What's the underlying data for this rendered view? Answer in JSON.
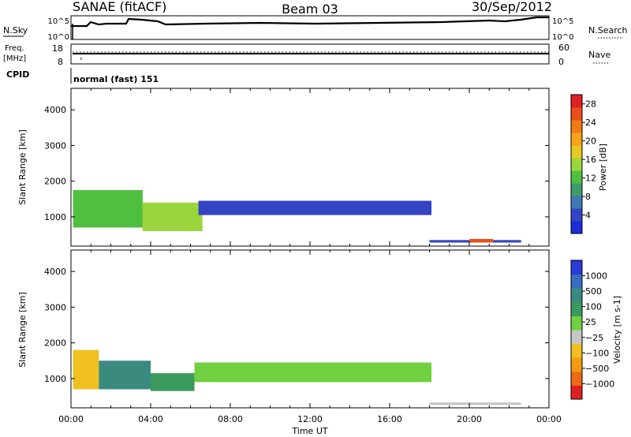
{
  "header": {
    "title": "SANAE (fitACF)",
    "beam": "Beam 03",
    "date": "30/Sep/2012"
  },
  "top_panels": {
    "nsky_label": "N.Sky",
    "nsearch_label": "N.Search",
    "freq_label": "Freq.",
    "freq_unit": "[MHz]",
    "nave_label": "Nave",
    "cpid_label": "CPID",
    "cpid_value": "normal (fast) 151",
    "noise_ticks_left": [
      "10^5",
      "10^0"
    ],
    "noise_ticks_right": [
      "10^5",
      "10^0"
    ],
    "freq_ticks": [
      "18",
      "8"
    ],
    "nave_ticks": [
      "60",
      "0"
    ]
  },
  "chart_data": [
    {
      "type": "heatmap",
      "name": "power",
      "ylabel": "Slant Range [km]",
      "xlabel": "",
      "y_ticks": [
        "1000",
        "2000",
        "3000",
        "4000"
      ],
      "ylim": [
        180,
        4600
      ],
      "colorbar_label": "Power [dB]",
      "colorbar_ticks": [
        "4",
        "8",
        "12",
        "16",
        "20",
        "24",
        "28"
      ],
      "colorbar_range": [
        0,
        30
      ],
      "colorbar_colors": [
        "#1a2bd8",
        "#3444c4",
        "#3f78b5",
        "#3f9a6c",
        "#4fbf3f",
        "#9ad63b",
        "#e6c81f",
        "#f7a21a",
        "#f07a14",
        "#e8501a",
        "#e02020"
      ],
      "regions": [
        {
          "t": [
            0.1,
            3.6
          ],
          "r": [
            700,
            1750
          ],
          "v": 13
        },
        {
          "t": [
            3.6,
            6.6
          ],
          "r": [
            600,
            1400
          ],
          "v": 15
        },
        {
          "t": [
            6.4,
            18.1
          ],
          "r": [
            1050,
            1450
          ],
          "v": 4
        },
        {
          "t": [
            18.0,
            22.6
          ],
          "r": [
            280,
            350
          ],
          "v": 5
        },
        {
          "t": [
            20.0,
            21.2
          ],
          "r": [
            280,
            380
          ],
          "v": 27
        }
      ]
    },
    {
      "type": "heatmap",
      "name": "velocity",
      "ylabel": "Slant Range [km]",
      "xlabel": "Time UT",
      "x_ticks": [
        "00:00",
        "04:00",
        "08:00",
        "12:00",
        "16:00",
        "20:00",
        "00:00"
      ],
      "y_ticks": [
        "1000",
        "2000",
        "3000",
        "4000"
      ],
      "ylim": [
        180,
        4600
      ],
      "colorbar_label": "Velocity [m s-1]",
      "colorbar_ticks": [
        "1000",
        "500",
        "100",
        "25",
        "−25",
        "−100",
        "−500",
        "−1000"
      ],
      "colorbar_colors": [
        "#2a3bd6",
        "#3a6cc0",
        "#3a8a80",
        "#3a9a5c",
        "#70d040",
        "#c6c6c6",
        "#f0c020",
        "#f59a14",
        "#ee6a14",
        "#e02020"
      ],
      "regions": [
        {
          "t": [
            0.1,
            1.4
          ],
          "r": [
            700,
            1800
          ],
          "v": -150
        },
        {
          "t": [
            1.4,
            4.0
          ],
          "r": [
            700,
            1500
          ],
          "v": 120
        },
        {
          "t": [
            4.0,
            6.2
          ],
          "r": [
            650,
            1150
          ],
          "v": 60
        },
        {
          "t": [
            6.2,
            18.1
          ],
          "r": [
            900,
            1450
          ],
          "v": 0
        },
        {
          "t": [
            18.0,
            22.6
          ],
          "r": [
            260,
            330
          ],
          "v": -80
        }
      ]
    }
  ]
}
